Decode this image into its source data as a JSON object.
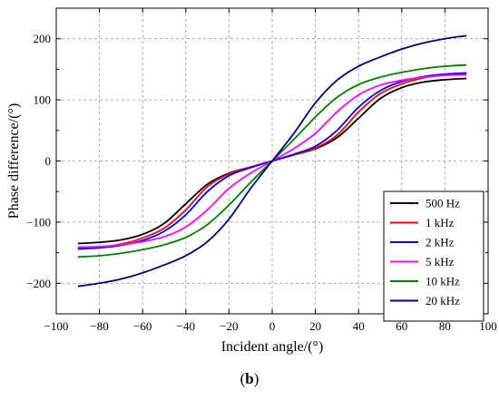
{
  "chart_data": {
    "type": "line",
    "title": "",
    "xlabel": "Incident angle/(°)",
    "ylabel": "Phase difference/(°)",
    "xlim": [
      -100,
      100
    ],
    "ylim": [
      -250,
      250
    ],
    "xticks": [
      -100,
      -80,
      -60,
      -40,
      -20,
      0,
      20,
      40,
      60,
      80,
      100
    ],
    "yticks": [
      -200,
      -100,
      0,
      100,
      200
    ],
    "grid": true,
    "legend_position": "bottom-right",
    "x": [
      -90,
      -80,
      -70,
      -60,
      -50,
      -40,
      -30,
      -20,
      -10,
      0,
      10,
      20,
      30,
      40,
      50,
      60,
      70,
      80,
      90
    ],
    "series": [
      {
        "name": "500 Hz",
        "color": "#000000",
        "values": [
          -135,
          -133,
          -129,
          -120,
          -102,
          -70,
          -38,
          -20,
          -10,
          0,
          10,
          20,
          38,
          70,
          102,
          120,
          129,
          133,
          135
        ]
      },
      {
        "name": "1 kHz",
        "color": "#ff0000",
        "values": [
          -143,
          -141,
          -136,
          -126,
          -110,
          -80,
          -42,
          -21,
          -10,
          0,
          10,
          21,
          42,
          80,
          110,
          126,
          136,
          141,
          143
        ]
      },
      {
        "name": "2 kHz",
        "color": "#0000ff",
        "values": [
          -144,
          -142,
          -138,
          -130,
          -115,
          -88,
          -50,
          -24,
          -11,
          0,
          11,
          24,
          50,
          88,
          115,
          130,
          138,
          142,
          144
        ]
      },
      {
        "name": "5 kHz",
        "color": "#ff00ff",
        "values": [
          -141,
          -140,
          -137,
          -132,
          -124,
          -108,
          -80,
          -45,
          -20,
          0,
          20,
          45,
          80,
          108,
          124,
          132,
          137,
          140,
          141
        ]
      },
      {
        "name": "10 kHz",
        "color": "#008000",
        "values": [
          -157,
          -155,
          -151,
          -145,
          -137,
          -125,
          -104,
          -72,
          -35,
          0,
          35,
          72,
          104,
          125,
          137,
          145,
          151,
          155,
          157
        ]
      },
      {
        "name": "20 kHz",
        "color": "#000080",
        "values": [
          -205,
          -200,
          -193,
          -183,
          -170,
          -155,
          -132,
          -95,
          -45,
          0,
          45,
          95,
          132,
          155,
          170,
          183,
          193,
          200,
          205
        ]
      }
    ]
  },
  "caption": {
    "open": "(",
    "letter": "b",
    "close": ")"
  }
}
